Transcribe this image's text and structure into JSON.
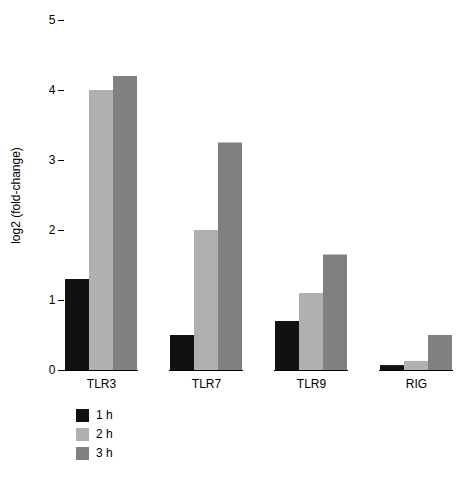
{
  "chart_data": {
    "type": "bar",
    "categories": [
      "TLR3",
      "TLR7",
      "TLR9",
      "RIG"
    ],
    "series": [
      {
        "name": "1 h",
        "color": "#111111",
        "values": [
          1.3,
          0.5,
          0.7,
          0.07
        ]
      },
      {
        "name": "2 h",
        "color": "#b0b0b0",
        "values": [
          4.0,
          2.0,
          1.1,
          0.13
        ]
      },
      {
        "name": "3 h",
        "color": "#808080",
        "values": [
          4.2,
          3.25,
          1.65,
          0.5
        ]
      }
    ],
    "ylabel": "log2 (fold-change)",
    "ylim": [
      0,
      5
    ],
    "yticks": [
      0,
      1,
      2,
      3,
      4,
      5
    ],
    "grid": false,
    "legend": "bottom"
  }
}
